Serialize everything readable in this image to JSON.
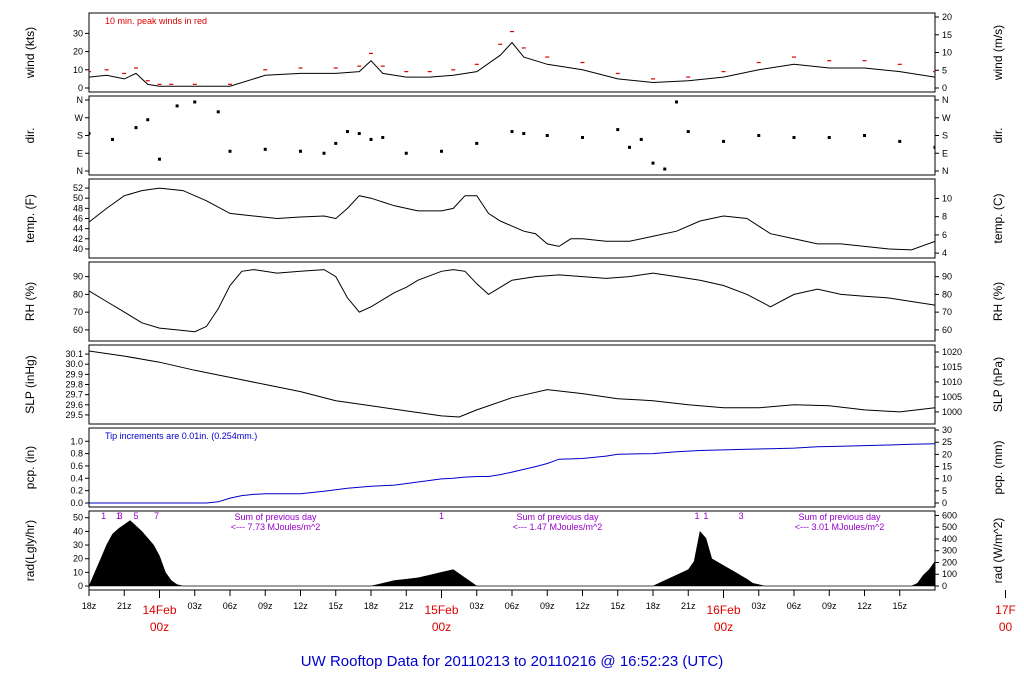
{
  "footer_title": "UW Rooftop Data for 20110213  to  20110216 @ 16:52:23  (UTC)",
  "colors": {
    "wind": "#000000",
    "peak": "#dd0000",
    "precip": "#0000cc",
    "annotation": "#9900cc",
    "day": "#dd0000",
    "footer": "#0000cc"
  },
  "chart_data": [
    {
      "id": "wind",
      "type": "line",
      "ylabel_left": "wind (kts)",
      "ylabel_right": "wind (m/s)",
      "note": "10 min. peak winds in red",
      "left_ticks": [
        "0",
        "10",
        "20",
        "30"
      ],
      "left_range": [
        0,
        39
      ],
      "right_ticks": [
        "0",
        "5",
        "10",
        "15",
        "20"
      ],
      "right_range": [
        0,
        20
      ],
      "series": [
        {
          "x": [
            0,
            3,
            6,
            8,
            10,
            12,
            14,
            18,
            24,
            30,
            36,
            42,
            46,
            48,
            50,
            54,
            58,
            62,
            66,
            70,
            72,
            74,
            78,
            84,
            90,
            96,
            102,
            108,
            114,
            120,
            126,
            132,
            138,
            144
          ],
          "y": [
            6,
            7,
            5,
            8,
            2,
            1,
            1,
            1,
            1,
            7,
            8,
            8,
            9,
            15,
            8,
            6,
            6,
            7,
            9,
            18,
            25,
            17,
            13,
            10,
            5,
            3,
            4,
            6,
            10,
            13,
            11,
            11,
            9,
            6
          ]
        },
        {
          "name": "10 min. peak",
          "x": [
            0,
            3,
            6,
            8,
            10,
            12,
            14,
            18,
            24,
            30,
            36,
            42,
            46,
            48,
            50,
            54,
            58,
            62,
            66,
            70,
            72,
            74,
            78,
            84,
            90,
            96,
            102,
            108,
            114,
            120,
            126,
            132,
            138,
            144
          ],
          "y": [
            9,
            10,
            8,
            11,
            4,
            2,
            2,
            2,
            2,
            10,
            11,
            11,
            12,
            19,
            12,
            9,
            9,
            10,
            13,
            24,
            31,
            22,
            17,
            14,
            8,
            5,
            6,
            9,
            14,
            17,
            15,
            15,
            13,
            9
          ]
        }
      ]
    },
    {
      "id": "dir",
      "type": "scatter",
      "ylabel_left": "dir.",
      "ylabel_right": "dir.",
      "left_ticks": [
        "N",
        "E",
        "S",
        "W",
        "N"
      ],
      "left_range": [
        0,
        360
      ],
      "right_ticks": [
        "N",
        "E",
        "S",
        "W",
        "N"
      ],
      "right_range": [
        0,
        360
      ],
      "series": [
        {
          "x": [
            0,
            4,
            8,
            10,
            12,
            15,
            18,
            22,
            24,
            30,
            36,
            40,
            42,
            44,
            46,
            48,
            50,
            54,
            60,
            66,
            72,
            74,
            78,
            84,
            90,
            92,
            94,
            96,
            98,
            100,
            102,
            108,
            114,
            120,
            126,
            132,
            138,
            144
          ],
          "y": [
            190,
            160,
            220,
            260,
            60,
            330,
            350,
            300,
            100,
            110,
            100,
            90,
            140,
            200,
            190,
            160,
            170,
            90,
            100,
            140,
            200,
            190,
            180,
            170,
            210,
            120,
            160,
            40,
            10,
            350,
            200,
            150,
            180,
            170,
            170,
            180,
            150,
            120
          ]
        }
      ]
    },
    {
      "id": "temp",
      "type": "line",
      "ylabel_left": "temp. (F)",
      "ylabel_right": "temp. (C)",
      "left_ticks": [
        "40",
        "42",
        "44",
        "46",
        "48",
        "50",
        "52"
      ],
      "left_range": [
        39,
        53
      ],
      "right_ticks": [
        "4",
        "6",
        "8",
        "10"
      ],
      "right_range": [
        3.9,
        11.7
      ],
      "series": [
        {
          "x": [
            0,
            3,
            6,
            9,
            12,
            16,
            20,
            24,
            28,
            32,
            36,
            40,
            42,
            44,
            46,
            48,
            52,
            56,
            60,
            62,
            64,
            66,
            68,
            70,
            72,
            74,
            76,
            78,
            80,
            82,
            84,
            88,
            92,
            96,
            100,
            104,
            108,
            112,
            116,
            120,
            124,
            128,
            132,
            136,
            140,
            144
          ],
          "y": [
            45.3,
            48,
            50.5,
            51.5,
            52,
            51.5,
            49.5,
            47,
            46.5,
            46,
            46.3,
            46.5,
            46,
            48,
            50.5,
            50,
            48.5,
            47.5,
            47.5,
            48,
            50.5,
            50.5,
            47,
            45.5,
            44.5,
            43.5,
            43,
            41,
            40.5,
            42,
            42,
            41.5,
            41.5,
            42.5,
            43.5,
            45.5,
            46.5,
            46,
            43,
            42,
            41,
            41,
            40.5,
            40,
            39.8,
            41.5
          ]
        }
      ]
    },
    {
      "id": "rh",
      "type": "line",
      "ylabel_left": "RH (%)",
      "ylabel_right": "RH (%)",
      "left_ticks": [
        "60",
        "70",
        "80",
        "90"
      ],
      "left_range": [
        56,
        96
      ],
      "right_ticks": [
        "60",
        "70",
        "80",
        "90"
      ],
      "right_range": [
        56,
        96
      ],
      "series": [
        {
          "x": [
            0,
            3,
            6,
            9,
            12,
            15,
            18,
            20,
            22,
            24,
            26,
            28,
            32,
            36,
            40,
            42,
            44,
            46,
            48,
            50,
            52,
            54,
            56,
            60,
            62,
            64,
            66,
            68,
            70,
            72,
            76,
            80,
            84,
            88,
            92,
            96,
            100,
            104,
            108,
            112,
            116,
            120,
            124,
            128,
            132,
            136,
            140,
            144
          ],
          "y": [
            82,
            76,
            70,
            64,
            61,
            60,
            59,
            62,
            72,
            85,
            93,
            94,
            92,
            93,
            94,
            90,
            78,
            70,
            73,
            77,
            81,
            84,
            88,
            93,
            94,
            93,
            86,
            80,
            84,
            88,
            90,
            91,
            90,
            89,
            90,
            92,
            90,
            88,
            85,
            80,
            73,
            80,
            83,
            80,
            79,
            78,
            76,
            74
          ]
        }
      ]
    },
    {
      "id": "slp",
      "type": "line",
      "ylabel_left": "SLP (inHg)",
      "ylabel_right": "SLP (hPa)",
      "left_ticks": [
        "29.5",
        "29.6",
        "29.7",
        "29.8",
        "29.9",
        "30.0",
        "30.1"
      ],
      "left_range": [
        29.45,
        30.15
      ],
      "right_ticks": [
        "1000",
        "1005",
        "1010",
        "1015",
        "1020"
      ],
      "right_range": [
        997.3,
        1021.0
      ],
      "series": [
        {
          "x": [
            0,
            6,
            12,
            18,
            24,
            30,
            36,
            42,
            48,
            54,
            60,
            63,
            66,
            72,
            78,
            84,
            90,
            96,
            102,
            108,
            114,
            120,
            126,
            132,
            138,
            144
          ],
          "y": [
            30.13,
            30.08,
            30.02,
            29.94,
            29.87,
            29.8,
            29.73,
            29.64,
            29.59,
            29.54,
            29.49,
            29.48,
            29.55,
            29.67,
            29.75,
            29.71,
            29.66,
            29.64,
            29.6,
            29.57,
            29.57,
            29.6,
            29.59,
            29.55,
            29.53,
            29.57
          ]
        }
      ]
    },
    {
      "id": "pcp",
      "type": "line",
      "ylabel_left": "pcp. (in)",
      "ylabel_right": "pcp. (mm)",
      "note": "Tip increments are 0.01in. (0.254mm.)",
      "left_ticks": [
        "0.0",
        "0.2",
        "0.4",
        "0.6",
        "0.8",
        "1.0"
      ],
      "left_range": [
        0,
        1.15
      ],
      "right_ticks": [
        "0",
        "5",
        "10",
        "15",
        "20",
        "25",
        "30"
      ],
      "right_range": [
        0,
        29.2
      ],
      "series": [
        {
          "x": [
            0,
            20,
            22,
            24,
            26,
            28,
            30,
            32,
            36,
            40,
            44,
            48,
            52,
            56,
            60,
            62,
            64,
            66,
            68,
            70,
            72,
            76,
            78,
            80,
            84,
            88,
            90,
            96,
            100,
            104,
            108,
            112,
            116,
            120,
            124,
            128,
            132,
            136,
            140,
            144
          ],
          "y": [
            0,
            0,
            0.02,
            0.08,
            0.12,
            0.14,
            0.15,
            0.15,
            0.15,
            0.19,
            0.24,
            0.27,
            0.29,
            0.34,
            0.39,
            0.4,
            0.42,
            0.43,
            0.43,
            0.46,
            0.5,
            0.59,
            0.64,
            0.71,
            0.72,
            0.76,
            0.79,
            0.8,
            0.83,
            0.85,
            0.86,
            0.87,
            0.88,
            0.89,
            0.91,
            0.92,
            0.93,
            0.94,
            0.95,
            0.96
          ]
        }
      ]
    },
    {
      "id": "rad",
      "type": "area",
      "ylabel_left": "rad(Lgly/hr)",
      "ylabel_right": "rad (W/m^2)",
      "left_ticks": [
        "0",
        "10",
        "20",
        "30",
        "40",
        "50"
      ],
      "left_range": [
        0,
        52
      ],
      "right_ticks": [
        "0",
        "100",
        "200",
        "300",
        "400",
        "500",
        "600"
      ],
      "right_range": [
        0,
        604
      ],
      "annotations": [
        {
          "label1": "Sum of previous day",
          "label2": "<--- 7.73 MJoules/m^2",
          "x": 28
        },
        {
          "label1": "Sum of previous day",
          "label2": "<--- 1.47 MJoules/m^2",
          "x": 76
        },
        {
          "label1": "Sum of previous day",
          "label2": "<--- 3.01 MJoules/m^2",
          "x": 124
        }
      ],
      "top_marks": [
        {
          "label": "1",
          "x": 2.5
        },
        {
          "label": "1",
          "x": 5
        },
        {
          "label": "3",
          "x": 5.3
        },
        {
          "label": "5",
          "x": 8
        },
        {
          "label": "7",
          "x": 11.5
        },
        {
          "label": "1",
          "x": 60
        },
        {
          "label": "1",
          "x": 103.5
        },
        {
          "label": "1",
          "x": 105
        },
        {
          "label": "3",
          "x": 111
        }
      ],
      "series": [
        {
          "x": [
            0,
            1,
            2,
            3,
            4,
            5,
            6,
            7,
            8,
            9,
            10,
            11,
            12,
            13,
            14,
            15,
            16,
            48,
            50,
            52,
            54,
            56,
            58,
            60,
            62,
            64,
            66,
            72,
            96,
            98,
            100,
            102,
            103,
            104,
            105,
            106,
            108,
            110,
            112,
            113,
            114,
            115,
            120,
            140,
            141,
            142,
            143,
            144
          ],
          "y": [
            0,
            10,
            20,
            30,
            38,
            42,
            45,
            48,
            44,
            40,
            35,
            30,
            22,
            10,
            4,
            1,
            0,
            0,
            2,
            4,
            5,
            6,
            8,
            10,
            12,
            6,
            0,
            0,
            0,
            4,
            8,
            12,
            18,
            40,
            35,
            20,
            15,
            10,
            5,
            2,
            1,
            0,
            0,
            0,
            2,
            8,
            12,
            18
          ]
        }
      ]
    }
  ],
  "time_axis": {
    "x_range": [
      0,
      144
    ],
    "ticks": [
      {
        "x": 0,
        "label": "18z"
      },
      {
        "x": 6,
        "label": "21z"
      },
      {
        "x": 18,
        "label": "03z"
      },
      {
        "x": 24,
        "label": "06z"
      },
      {
        "x": 30,
        "label": "09z"
      },
      {
        "x": 36,
        "label": "12z"
      },
      {
        "x": 42,
        "label": "15z"
      },
      {
        "x": 48,
        "label": "18z"
      },
      {
        "x": 54,
        "label": "21z"
      },
      {
        "x": 66,
        "label": "03z"
      },
      {
        "x": 72,
        "label": "06z"
      },
      {
        "x": 78,
        "label": "09z"
      },
      {
        "x": 84,
        "label": "12z"
      },
      {
        "x": 90,
        "label": "15z"
      },
      {
        "x": 96,
        "label": "18z"
      },
      {
        "x": 102,
        "label": "21z"
      },
      {
        "x": 114,
        "label": "03z"
      },
      {
        "x": 120,
        "label": "06z"
      },
      {
        "x": 126,
        "label": "09z"
      },
      {
        "x": 132,
        "label": "12z"
      },
      {
        "x": 138,
        "label": "15z"
      }
    ],
    "days": [
      {
        "x": 12,
        "top": "14Feb",
        "bottom": "00z"
      },
      {
        "x": 60,
        "top": "15Feb",
        "bottom": "00z"
      },
      {
        "x": 108,
        "top": "16Feb",
        "bottom": "00z"
      },
      {
        "x": 156,
        "top": "17F",
        "bottom": "00"
      }
    ]
  }
}
